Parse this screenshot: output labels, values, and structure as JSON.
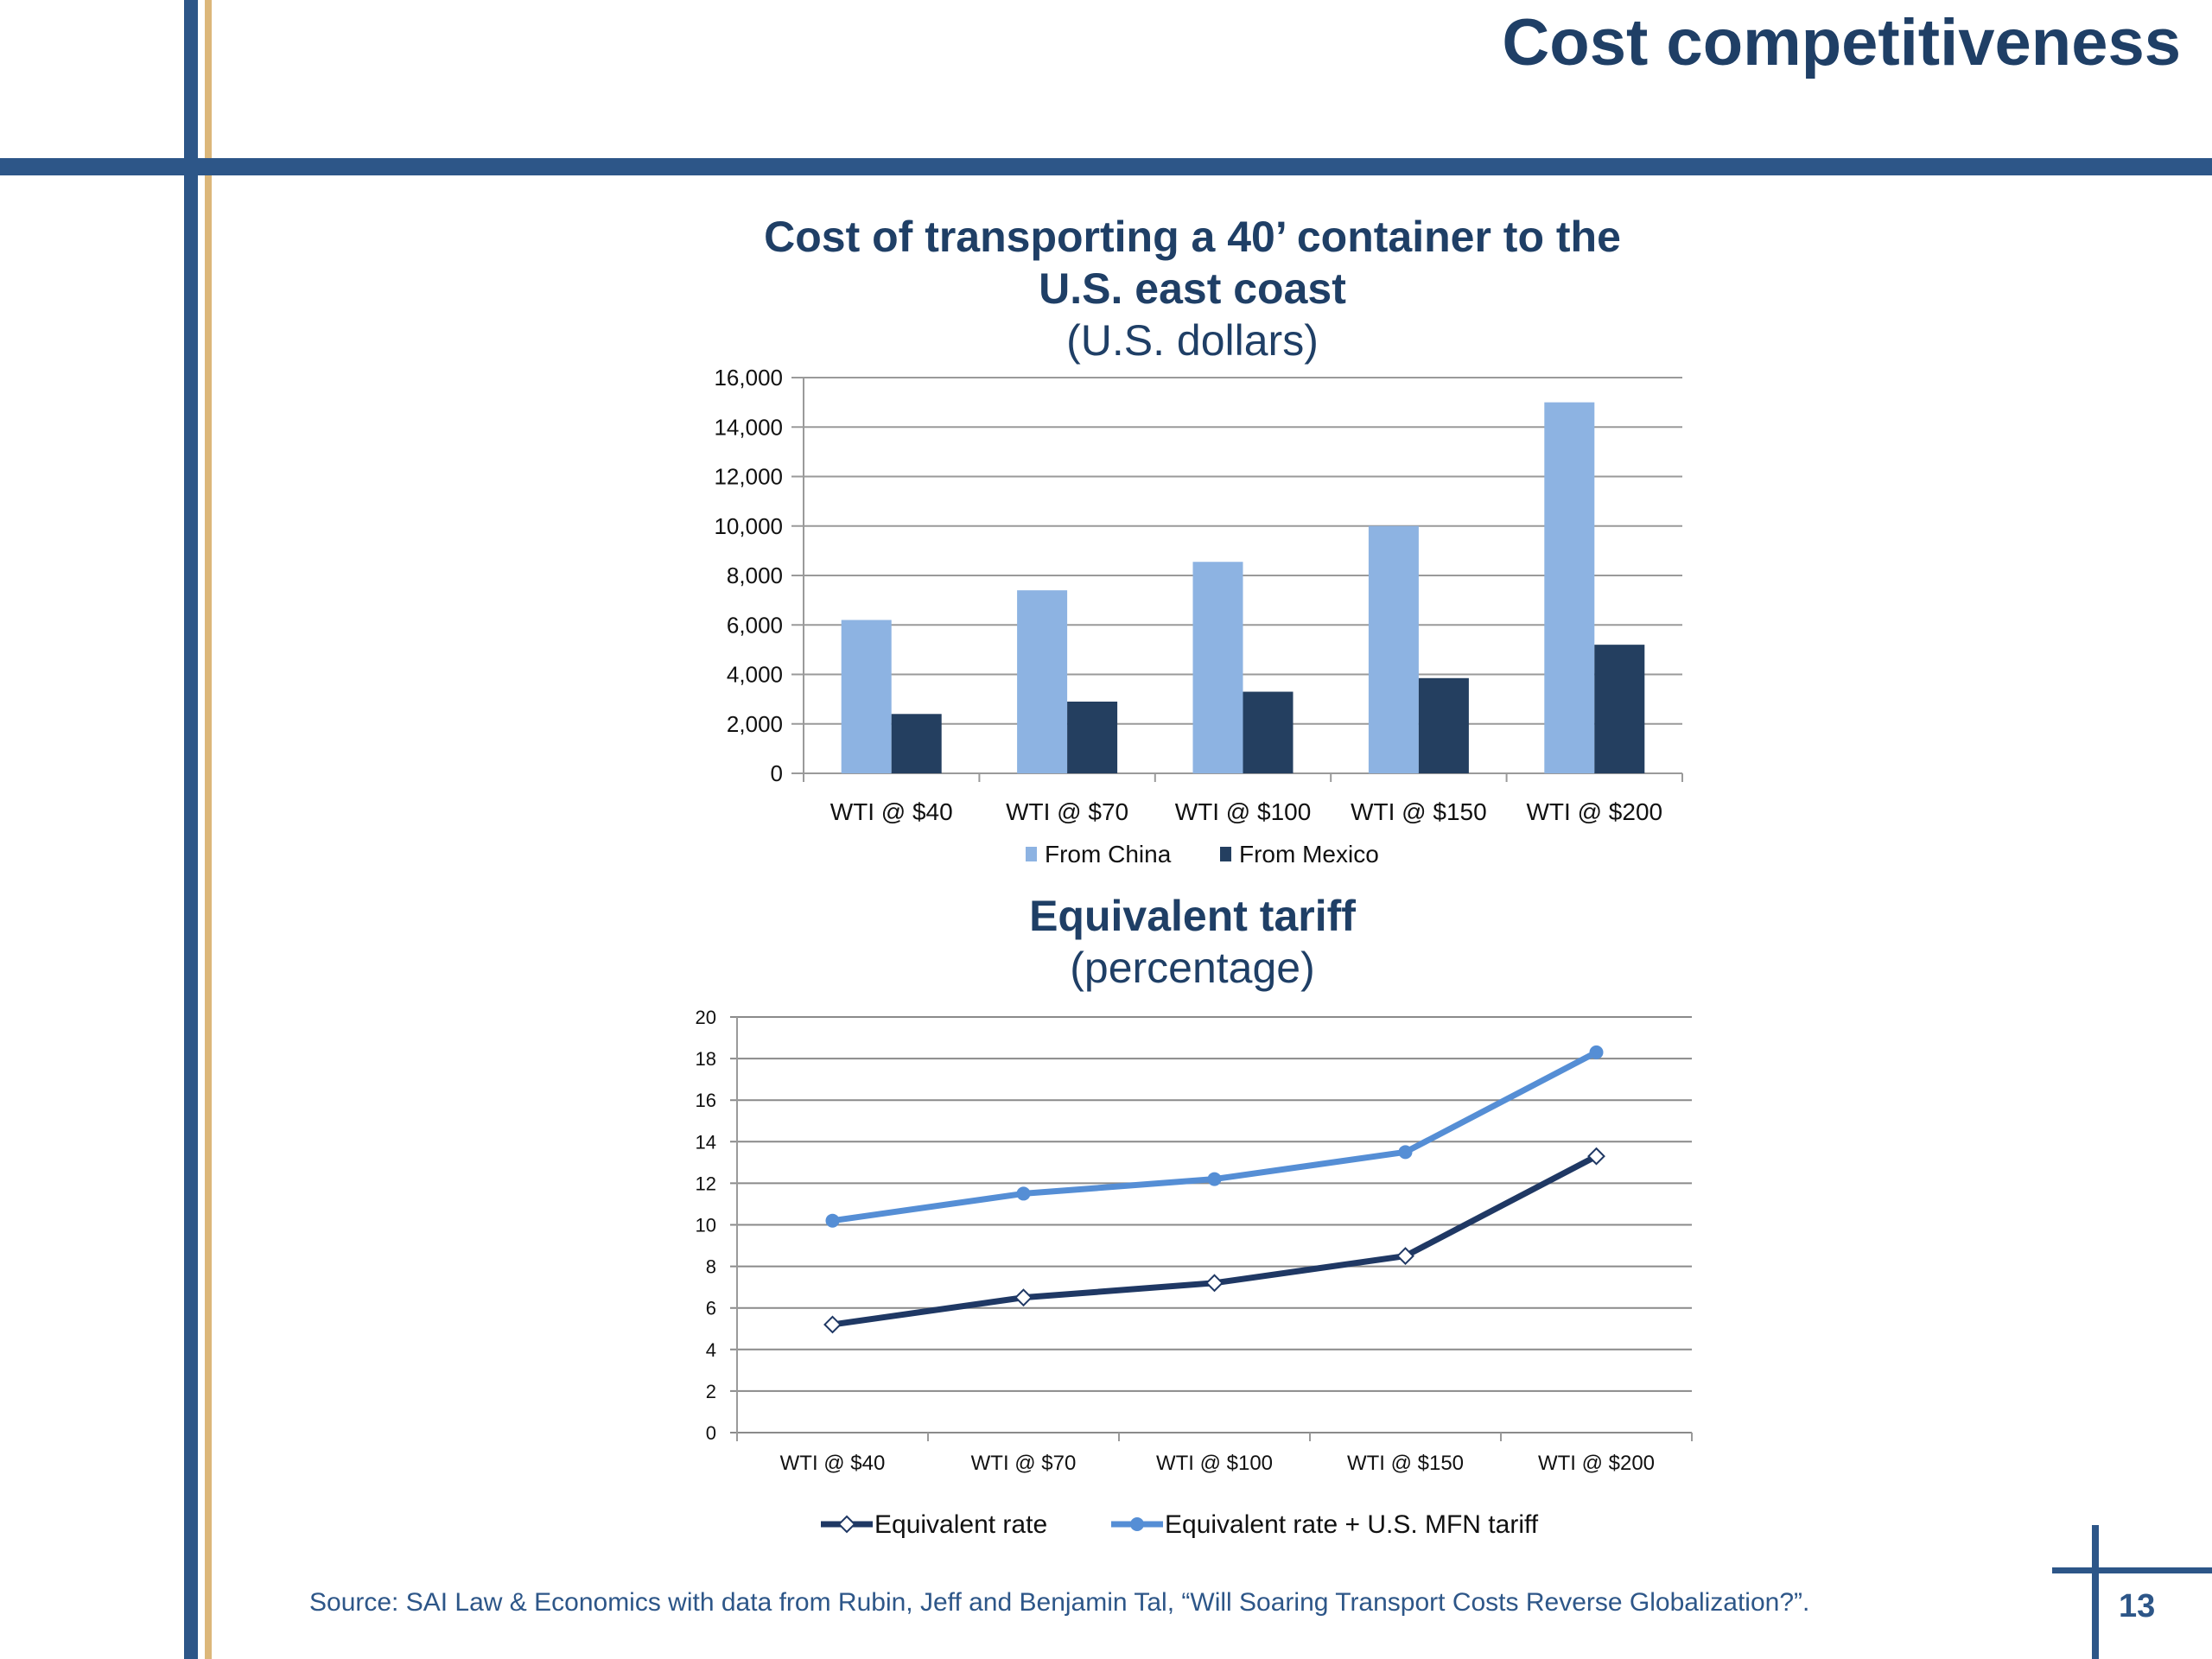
{
  "slide": {
    "title": "Cost competitiveness",
    "page_number": "13",
    "source": "Source: SAI Law & Economics with data from Rubin, Jeff and Benjamin Tal, “Will Soaring Transport Costs Reverse Globalization?”.",
    "colors": {
      "brand_blue": "#2d5688",
      "title_navy": "#1f3f66",
      "accent_gold": "#dcb77a"
    }
  },
  "chart_data": [
    {
      "type": "bar",
      "title": "Cost of transporting  a 40’ container to the",
      "title_line2": "U.S. east coast",
      "subtitle": "(U.S. dollars)",
      "xlabel": "",
      "ylabel": "",
      "categories": [
        "WTI @ $40",
        "WTI @ $70",
        "WTI @ $100",
        "WTI @ $150",
        "WTI @ $200"
      ],
      "series": [
        {
          "name": "From China",
          "color": "#8db3e2",
          "values": [
            6200,
            7400,
            8550,
            10000,
            15000
          ]
        },
        {
          "name": "From Mexico",
          "color": "#243f60",
          "values": [
            2400,
            2900,
            3300,
            3850,
            5200
          ]
        }
      ],
      "ylim": [
        0,
        16000
      ],
      "yticks": [
        0,
        2000,
        4000,
        6000,
        8000,
        10000,
        12000,
        14000,
        16000
      ],
      "ytick_labels": [
        "0",
        "2,000",
        "4,000",
        "6,000",
        "8,000",
        "10,000",
        "12,000",
        "14,000",
        "16,000"
      ],
      "grid": true,
      "legend": "bottom"
    },
    {
      "type": "line",
      "title": "Equivalent tariff",
      "subtitle": "(percentage)",
      "xlabel": "",
      "ylabel": "",
      "categories": [
        "WTI @ $40",
        "WTI @ $70",
        "WTI @ $100",
        "WTI @ $150",
        "WTI @ $200"
      ],
      "series": [
        {
          "name": "Equivalent rate",
          "color": "#1f3864",
          "marker": "hollow-diamond",
          "values": [
            5.2,
            6.5,
            7.2,
            8.5,
            13.3
          ]
        },
        {
          "name": "Equivalent rate + U.S. MFN tariff",
          "color": "#558ed5",
          "marker": "filled-circle",
          "values": [
            10.2,
            11.5,
            12.2,
            13.5,
            18.3
          ]
        }
      ],
      "ylim": [
        0,
        20
      ],
      "yticks": [
        0,
        2,
        4,
        6,
        8,
        10,
        12,
        14,
        16,
        18,
        20
      ],
      "ytick_labels": [
        "0",
        "2",
        "4",
        "6",
        "8",
        "10",
        "12",
        "14",
        "16",
        "18",
        "20"
      ],
      "grid": true,
      "legend": "bottom"
    }
  ]
}
